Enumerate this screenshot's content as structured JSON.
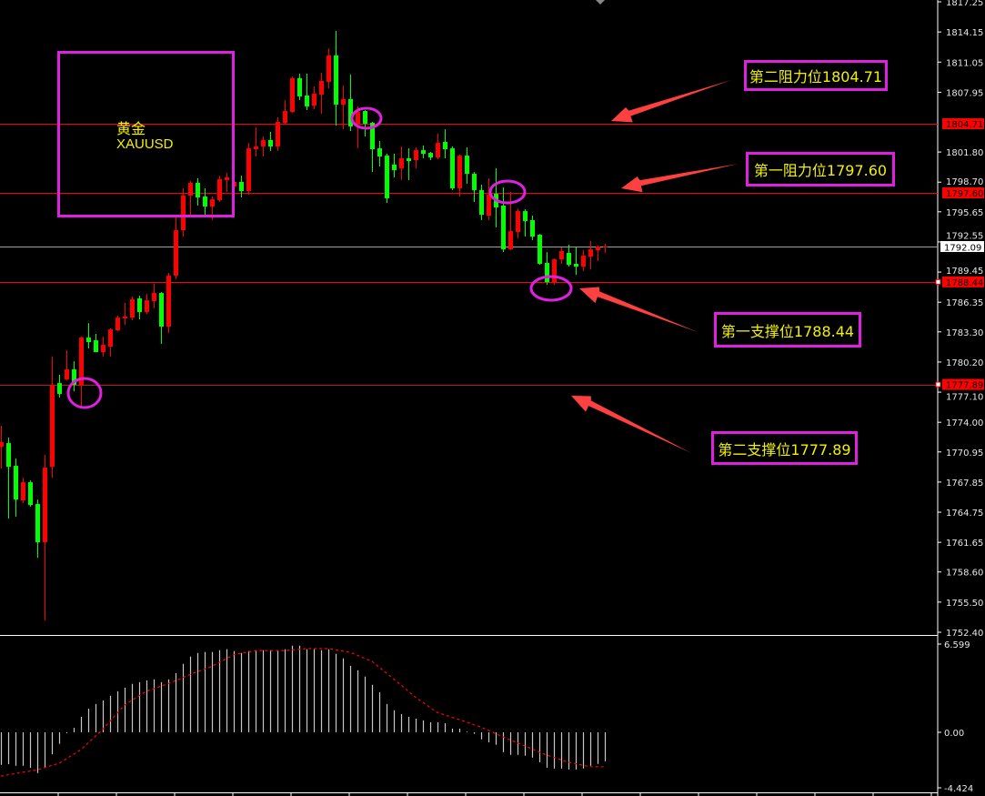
{
  "chart_data": {
    "type": "candlestick",
    "symbol": {
      "name_cn": "黄金",
      "name": "XAUUSD"
    },
    "colors": {
      "up": "#ff0000",
      "down": "#00ff00",
      "resistance": "#ff0000",
      "support": "#ff0000",
      "current": "#a0a0a0",
      "annotation": "#e020e0",
      "label_text": "#f2f200",
      "arrow": "#ff4040",
      "histogram": "#c8c8c8",
      "signal": "#ff0000"
    },
    "ylim": [
      1752.4,
      1817.25
    ],
    "price_axis": {
      "ticks": [
        "1817.25",
        "1814.15",
        "1811.05",
        "1807.95",
        "1801.80",
        "1798.70",
        "1795.65",
        "1792.55",
        "1789.45",
        "1786.35",
        "1783.30",
        "1780.20",
        "1777.10",
        "1774.00",
        "1770.95",
        "1767.85",
        "1764.75",
        "1761.65",
        "1758.60",
        "1755.50",
        "1752.40"
      ]
    },
    "levels": [
      {
        "label": "第二阻力位1804.71",
        "price": 1804.71,
        "tag": "1804.71",
        "kind": "resistance"
      },
      {
        "label": "第一阻力位1797.60",
        "price": 1797.6,
        "tag": "1797.60",
        "kind": "resistance"
      },
      {
        "label": "第一支撑位1788.44",
        "price": 1788.44,
        "tag": "1788.44",
        "kind": "support"
      },
      {
        "label": "第二支撑位1777.89",
        "price": 1777.89,
        "tag": "1777.89",
        "kind": "support"
      }
    ],
    "current_price": {
      "price": 1792.09,
      "tag": "1792.09"
    },
    "candle_fields": [
      "open",
      "high",
      "low",
      "close"
    ],
    "candles": [
      [
        1771.48,
        1773.64,
        1769.24,
        1771.95
      ],
      [
        1771.86,
        1772.42,
        1764.09,
        1769.42
      ],
      [
        1769.52,
        1770.27,
        1764.28,
        1766.05
      ],
      [
        1765.96,
        1768.3,
        1765.68,
        1767.83
      ],
      [
        1767.83,
        1768.02,
        1765.31,
        1765.49
      ],
      [
        1765.59,
        1766.05,
        1760.06,
        1761.65
      ],
      [
        1761.65,
        1770.64,
        1753.6,
        1769.33
      ],
      [
        1769.42,
        1780.75,
        1768.3,
        1777.85
      ],
      [
        1778.03,
        1778.88,
        1776.54,
        1776.91
      ],
      [
        1778.41,
        1781.4,
        1778.32,
        1779.44
      ],
      [
        1779.44,
        1780.28,
        1777.19,
        1777.85
      ],
      [
        1777.85,
        1782.8,
        1775.41,
        1782.71
      ],
      [
        1782.71,
        1784.21,
        1781.59,
        1782.25
      ],
      [
        1782.43,
        1783.09,
        1781.22,
        1781.22
      ],
      [
        1781.22,
        1782.81,
        1780.75,
        1781.97
      ],
      [
        1781.78,
        1783.65,
        1780.75,
        1783.56
      ],
      [
        1783.46,
        1784.96,
        1783.37,
        1784.77
      ],
      [
        1784.68,
        1786.27,
        1784.02,
        1784.87
      ],
      [
        1784.77,
        1786.93,
        1784.49,
        1786.65
      ],
      [
        1786.74,
        1787.02,
        1784.59,
        1785.34
      ],
      [
        1785.34,
        1787.21,
        1785.15,
        1786.55
      ],
      [
        1786.46,
        1788.24,
        1785.71,
        1787.3
      ],
      [
        1787.3,
        1787.39,
        1782.06,
        1783.84
      ],
      [
        1783.84,
        1789.36,
        1783.18,
        1789.08
      ],
      [
        1789.08,
        1795.16,
        1788.7,
        1793.76
      ],
      [
        1793.76,
        1798.07,
        1793.1,
        1797.32
      ],
      [
        1797.32,
        1798.81,
        1795.35,
        1798.63
      ],
      [
        1798.63,
        1799.1,
        1796.29,
        1797.13
      ],
      [
        1797.22,
        1798.07,
        1795.35,
        1796.19
      ],
      [
        1796.19,
        1797.22,
        1794.79,
        1796.94
      ],
      [
        1796.85,
        1799.37,
        1796.66,
        1799.0
      ],
      [
        1798.91,
        1799.66,
        1797.69,
        1799.19
      ],
      [
        1798.25,
        1799.0,
        1797.6,
        1798.72
      ],
      [
        1798.72,
        1799.37,
        1797.13,
        1797.78
      ],
      [
        1797.78,
        1802.74,
        1797.41,
        1802.18
      ],
      [
        1802.09,
        1804.33,
        1801.34,
        1802.37
      ],
      [
        1802.37,
        1803.4,
        1801.34,
        1803.03
      ],
      [
        1803.03,
        1803.87,
        1801.9,
        1802.37
      ],
      [
        1802.37,
        1805.37,
        1801.9,
        1804.9
      ],
      [
        1804.8,
        1807.14,
        1804.62,
        1806.02
      ],
      [
        1805.93,
        1809.58,
        1805.83,
        1809.39
      ],
      [
        1809.39,
        1809.86,
        1807.14,
        1807.52
      ],
      [
        1807.61,
        1809.86,
        1806.11,
        1806.49
      ],
      [
        1806.58,
        1808.55,
        1806.2,
        1807.8
      ],
      [
        1807.7,
        1809.95,
        1805.74,
        1809.11
      ],
      [
        1809.02,
        1812.48,
        1808.36,
        1811.73
      ],
      [
        1811.73,
        1814.26,
        1804.52,
        1806.68
      ],
      [
        1806.68,
        1808.64,
        1804.15,
        1807.24
      ],
      [
        1807.24,
        1809.77,
        1803.96,
        1804.43
      ],
      [
        1804.62,
        1806.49,
        1802.18,
        1805.93
      ],
      [
        1806.02,
        1806.1,
        1803.4,
        1804.71
      ],
      [
        1804.8,
        1804.9,
        1799.75,
        1802.09
      ],
      [
        1802.18,
        1802.93,
        1800.31,
        1801.34
      ],
      [
        1801.43,
        1801.62,
        1796.57,
        1797.04
      ],
      [
        1800.5,
        1801.62,
        1799.19,
        1799.94
      ],
      [
        1800.12,
        1802.37,
        1798.91,
        1801.15
      ],
      [
        1801.15,
        1802.18,
        1798.91,
        1800.87
      ],
      [
        1800.97,
        1802.28,
        1800.12,
        1801.99
      ],
      [
        1801.99,
        1802.46,
        1801.15,
        1801.62
      ],
      [
        1801.71,
        1801.81,
        1800.97,
        1801.25
      ],
      [
        1801.25,
        1803.68,
        1801.06,
        1802.74
      ],
      [
        1802.84,
        1804.15,
        1801.15,
        1802.09
      ],
      [
        1802.18,
        1802.37,
        1797.88,
        1798.07
      ],
      [
        1798.07,
        1801.53,
        1797.22,
        1801.43
      ],
      [
        1801.43,
        1802.28,
        1798.53,
        1799.56
      ],
      [
        1799.56,
        1799.75,
        1796.66,
        1797.88
      ],
      [
        1797.88,
        1798.44,
        1794.79,
        1795.35
      ],
      [
        1795.26,
        1799.1,
        1794.79,
        1797.41
      ],
      [
        1797.5,
        1800.12,
        1794.04,
        1796.1
      ],
      [
        1796.29,
        1798.16,
        1791.51,
        1791.79
      ],
      [
        1791.79,
        1797.69,
        1791.7,
        1793.66
      ],
      [
        1793.57,
        1796.0,
        1792.91,
        1795.72
      ],
      [
        1795.72,
        1795.91,
        1793.1,
        1794.69
      ],
      [
        1794.79,
        1795.26,
        1792.73,
        1793.1
      ],
      [
        1793.29,
        1793.35,
        1790.2,
        1790.3
      ],
      [
        1790.39,
        1791.51,
        1788.14,
        1788.42
      ],
      [
        1788.42,
        1790.86,
        1788.14,
        1790.76
      ],
      [
        1790.76,
        1791.98,
        1790.3,
        1791.61
      ],
      [
        1791.42,
        1792.26,
        1790.02,
        1790.2
      ],
      [
        1790.3,
        1791.98,
        1789.17,
        1790.02
      ],
      [
        1790.02,
        1791.7,
        1789.55,
        1791.14
      ],
      [
        1791.04,
        1792.64,
        1789.73,
        1791.79
      ],
      [
        1791.7,
        1792.17,
        1790.58,
        1792.08
      ],
      [
        1792.09,
        1792.36,
        1791.42,
        1792.09
      ]
    ],
    "indicator": {
      "axis_ticks": [
        "6.599",
        "0.00",
        "-4.424"
      ],
      "ylim": [
        -4.424,
        6.599
      ],
      "histogram": [
        -2.46,
        -2.41,
        -2.53,
        -2.53,
        -2.69,
        -3.08,
        -2.69,
        -1.66,
        -0.87,
        -0.07,
        0.34,
        1.17,
        1.79,
        2.14,
        2.41,
        2.76,
        3.1,
        3.38,
        3.66,
        3.79,
        3.93,
        4.0,
        3.79,
        4.0,
        4.48,
        5.17,
        5.72,
        6.0,
        6.07,
        6.07,
        6.21,
        6.28,
        6.14,
        6.0,
        6.14,
        6.21,
        6.21,
        6.21,
        6.21,
        6.28,
        6.55,
        6.55,
        6.28,
        6.28,
        6.21,
        6.28,
        5.93,
        5.59,
        5.03,
        4.69,
        4.21,
        3.59,
        3.03,
        2.14,
        1.66,
        1.38,
        1.17,
        1.03,
        0.9,
        0.76,
        0.76,
        0.69,
        0.28,
        0.28,
        0.05,
        -0.11,
        -0.53,
        -0.76,
        -0.94,
        -1.5,
        -1.7,
        -1.7,
        -1.77,
        -1.91,
        -2.26,
        -2.67,
        -2.74,
        -2.74,
        -2.81,
        -2.81,
        -2.74,
        -2.53,
        -2.39,
        -2.19
      ],
      "signal": [
        -3.31,
        -3.21,
        -3.12,
        -3.02,
        -2.93,
        -2.83,
        -2.67,
        -2.5,
        -2.34,
        -2.0,
        -1.65,
        -1.31,
        -0.8,
        -0.28,
        0.23,
        0.84,
        1.46,
        2.07,
        2.41,
        2.76,
        3.1,
        3.29,
        3.49,
        3.68,
        3.91,
        4.14,
        4.37,
        4.58,
        4.78,
        4.99,
        5.28,
        5.57,
        5.86,
        5.97,
        6.07,
        6.18,
        6.18,
        6.18,
        6.18,
        6.18,
        6.23,
        6.27,
        6.32,
        6.32,
        6.32,
        6.32,
        6.23,
        6.14,
        6.05,
        5.82,
        5.59,
        5.36,
        4.91,
        4.47,
        4.02,
        3.56,
        3.1,
        2.64,
        2.26,
        1.87,
        1.49,
        1.32,
        1.14,
        0.97,
        0.78,
        0.58,
        0.39,
        0.15,
        -0.1,
        -0.34,
        -0.57,
        -0.8,
        -1.03,
        -1.26,
        -1.49,
        -1.72,
        -1.9,
        -2.08,
        -2.26,
        -2.37,
        -2.49,
        -2.6,
        -2.6,
        -2.6
      ]
    }
  }
}
